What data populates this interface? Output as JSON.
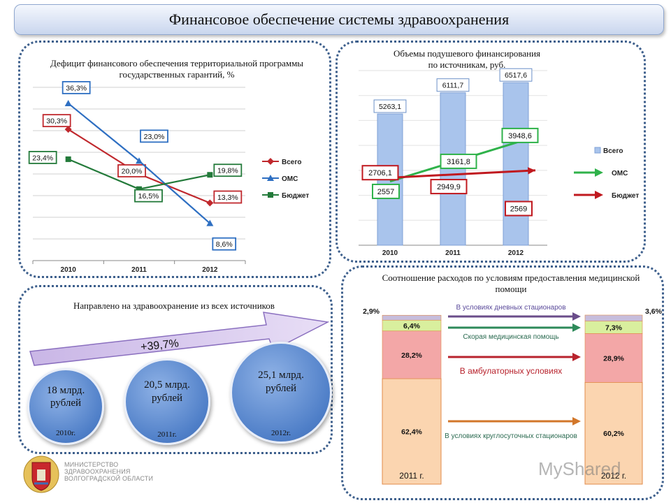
{
  "title": "Финансовое обеспечение системы здравоохранения",
  "deficit": {
    "title": "Дефицит финансового обеспечения территориальной программы государственных гарантий, %"
  },
  "percap": {
    "title_line1": "Объемы подушевого финансирования",
    "title_line2": "по источникам, руб."
  },
  "total": {
    "title": "Направлено на здравоохранение из всех источников",
    "growth": "+39,7%",
    "circles": [
      {
        "amount": "18 млрд. рублей",
        "year": "2010г."
      },
      {
        "amount": "20,5 млрд. рублей",
        "year": "2011г."
      },
      {
        "amount": "25,1 млрд. рублей",
        "year": "2012г."
      }
    ]
  },
  "ratio": {
    "title": "Соотношение расходов по условиям предоставления медицинской помощи"
  },
  "footer": {
    "org_line1": "МИНИСТЕРСТВО",
    "org_line2": "ЗДРАВООХРАНЕНИЯ",
    "org_line3": "ВОЛГОГРАДСКОЙ ОБЛАСТИ",
    "watermark": "MyShared"
  },
  "colors": {
    "total": "#c0282d",
    "oms": "#2e6fc2",
    "budget": "#237a3a",
    "bar_blue": "#a9c4ec",
    "arrow_green": "#2fb24a",
    "arrow_red": "#c0191f",
    "seg_day": "#c7bddc",
    "seg_emerg": "#d9ef9e",
    "seg_amb": "#f3a7a7",
    "seg_round": "#fbd5b0"
  },
  "chart_data": [
    {
      "type": "line",
      "x": [
        "2010",
        "2011",
        "2012"
      ],
      "series": [
        {
          "name": "Всего",
          "values": [
            30.3,
            20.0,
            13.3
          ],
          "labels": [
            "30,3%",
            "20,0%",
            "13,3%"
          ]
        },
        {
          "name": "ОМС",
          "values": [
            36.3,
            23.0,
            8.6
          ],
          "labels": [
            "36,3%",
            "23,0%",
            "8,6%"
          ]
        },
        {
          "name": "Бюджет",
          "values": [
            23.4,
            16.5,
            19.8
          ],
          "labels": [
            "23,4%",
            "16,5%",
            "19,8%"
          ]
        }
      ],
      "ylim": [
        0,
        40
      ],
      "grid": true,
      "legend": "right"
    },
    {
      "type": "bar",
      "categories": [
        "2010",
        "2011",
        "2012"
      ],
      "series": [
        {
          "name": "Всего",
          "values": [
            5263.1,
            6111.7,
            6517.6
          ],
          "labels": [
            "5263,1",
            "6111,7",
            "6517,6"
          ]
        },
        {
          "name": "ОМС",
          "values": [
            2557,
            3161.8,
            3948.6
          ],
          "labels": [
            "2557",
            "3161,8",
            "3948,6"
          ]
        },
        {
          "name": "Бюджет",
          "values": [
            2706.1,
            2949.9,
            2569
          ],
          "labels": [
            "2706,1",
            "2949,9",
            "2569"
          ]
        }
      ],
      "ylim": [
        0,
        7000
      ],
      "grid": true,
      "legend": "right"
    },
    {
      "type": "bar",
      "stacked": true,
      "categories": [
        "2011 г.",
        "2012 г."
      ],
      "series": [
        {
          "name": "В условиях круглосуточных стационаров",
          "values": [
            62.4,
            60.2
          ],
          "labels": [
            "62,4%",
            "60,2%"
          ]
        },
        {
          "name": "В амбулаторных условиях",
          "values": [
            28.2,
            28.9
          ],
          "labels": [
            "28,2%",
            "28,9%"
          ]
        },
        {
          "name": "Скорая медицинская помощь",
          "values": [
            6.4,
            7.3
          ],
          "labels": [
            "6,4%",
            "7,3%"
          ]
        },
        {
          "name": "В условиях дневных стационаров",
          "values": [
            2.9,
            3.6
          ],
          "labels": [
            "2,9%",
            "3,6%"
          ]
        }
      ],
      "ylim": [
        0,
        100
      ]
    }
  ]
}
